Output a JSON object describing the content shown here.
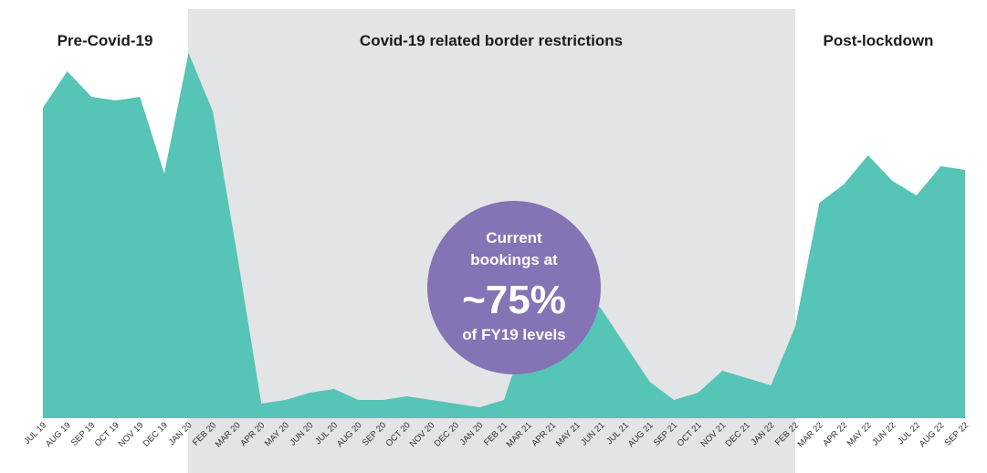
{
  "chart_data": {
    "type": "area",
    "title": "",
    "xlabel": "",
    "ylabel": "",
    "grid": false,
    "categories": [
      "JUL 19",
      "AUG 19",
      "SEP 19",
      "OCT 19",
      "NOV 19",
      "DEC 19",
      "JAN 20",
      "FEB 20",
      "MAR 20",
      "APR 20",
      "MAY 20",
      "JUN 20",
      "JUL 20",
      "AUG 20",
      "SEP 20",
      "OCT 20",
      "NOV 20",
      "DEC 20",
      "JAN 20",
      "FEB 21",
      "MAR 21",
      "APR 21",
      "MAY 21",
      "JUN 21",
      "JUL 21",
      "AUG 21",
      "SEP 21",
      "OCT 21",
      "NOV 21",
      "DEC 21",
      "JAN 22",
      "FEB 22",
      "MAR 22",
      "APR 22",
      "MAY 22",
      "JUN 22",
      "JUL 22",
      "AUG 22",
      "SEP 22"
    ],
    "series": [
      {
        "values": [
          85,
          95,
          88,
          87,
          88,
          67,
          100,
          84,
          45,
          4,
          5,
          7,
          8,
          5,
          5,
          6,
          5,
          4,
          3,
          5,
          25,
          30,
          37,
          30,
          20,
          10,
          5,
          7,
          13,
          11,
          9,
          25,
          59,
          64,
          72,
          65,
          61,
          69,
          68
        ],
        "color": "#56c4b6"
      }
    ],
    "periods": [
      {
        "label": "Pre-Covid-19",
        "start": "JUL 19",
        "end": "JAN 20",
        "shaded": false
      },
      {
        "label": "Covid-19 related border restrictions",
        "start": "JAN 20",
        "end": "FEB 22",
        "shaded": true,
        "color": "#e3e4e5"
      },
      {
        "label": "Post-lockdown",
        "start": "FEB 22",
        "end": "SEP 22",
        "shaded": false
      }
    ],
    "callout": {
      "line1": "Current",
      "line2": "bookings at",
      "value": "~75%",
      "line3": "of FY19 levels",
      "color": "#8474b5"
    }
  }
}
